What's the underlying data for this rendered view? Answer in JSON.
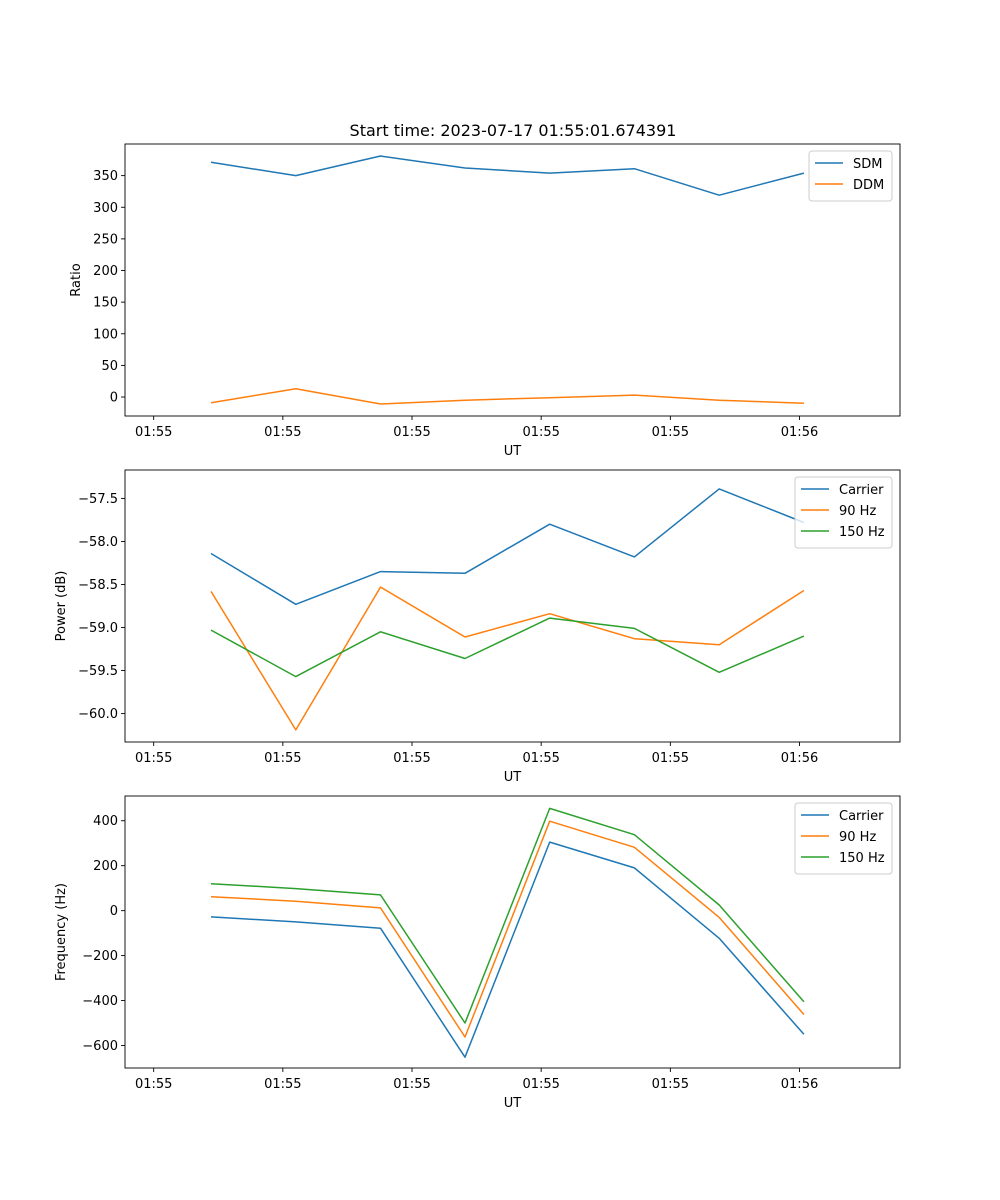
{
  "chart_data": {
    "title": "Start time: 2023-07-17 01:55:01.674391",
    "colors": {
      "c0": "#1f77b4",
      "c1": "#ff7f0e",
      "c2": "#2ca02c"
    },
    "subplots": [
      {
        "type": "line",
        "xlabel": "UT",
        "ylabel": "Ratio",
        "xlim": [
          -0.222,
          5.778
        ],
        "ylim": [
          -30,
          400
        ],
        "xticks": [
          0,
          1,
          2,
          3,
          4,
          5
        ],
        "xtick_labels": [
          "01:55",
          "01:55",
          "01:55",
          "01:55",
          "01:55",
          "01:56"
        ],
        "yticks": [
          0,
          50,
          100,
          150,
          200,
          250,
          300,
          350
        ],
        "ytick_labels": [
          "0",
          "50",
          "100",
          "150",
          "200",
          "250",
          "300",
          "350"
        ],
        "x": [
          0.444,
          1.1,
          1.756,
          2.41,
          3.066,
          3.722,
          4.378,
          5.034
        ],
        "legend_position": "top-right",
        "series": [
          {
            "name": "SDM",
            "color_key": "c0",
            "values": [
              371,
              350,
              381,
              362,
              354,
              361,
              319,
              354
            ]
          },
          {
            "name": "DDM",
            "color_key": "c1",
            "values": [
              -9,
              13,
              -11,
              -5,
              -1,
              3,
              -5,
              -10
            ]
          }
        ]
      },
      {
        "type": "line",
        "xlabel": "UT",
        "ylabel": "Power (dB)",
        "xlim": [
          -0.222,
          5.778
        ],
        "ylim": [
          -60.33,
          -57.17
        ],
        "xticks": [
          0,
          1,
          2,
          3,
          4,
          5
        ],
        "xtick_labels": [
          "01:55",
          "01:55",
          "01:55",
          "01:55",
          "01:55",
          "01:56"
        ],
        "yticks": [
          -60.0,
          -59.5,
          -59.0,
          -58.5,
          -58.0,
          -57.5
        ],
        "ytick_labels": [
          "−60.0",
          "−59.5",
          "−59.0",
          "−58.5",
          "−58.0",
          "−57.5"
        ],
        "x": [
          0.444,
          1.1,
          1.756,
          2.41,
          3.066,
          3.722,
          4.378,
          5.034
        ],
        "legend_position": "top-right",
        "series": [
          {
            "name": "Carrier",
            "color_key": "c0",
            "values": [
              -58.14,
              -58.73,
              -58.35,
              -58.37,
              -57.8,
              -58.18,
              -57.39,
              -57.78
            ]
          },
          {
            "name": "90 Hz",
            "color_key": "c1",
            "values": [
              -58.58,
              -60.19,
              -58.53,
              -59.11,
              -58.84,
              -59.13,
              -59.2,
              -58.57
            ]
          },
          {
            "name": "150 Hz",
            "color_key": "c2",
            "values": [
              -59.03,
              -59.57,
              -59.05,
              -59.36,
              -58.89,
              -59.01,
              -59.52,
              -59.1
            ]
          }
        ]
      },
      {
        "type": "line",
        "xlabel": "UT",
        "ylabel": "Frequency (Hz)",
        "xlim": [
          -0.222,
          5.778
        ],
        "ylim": [
          -700,
          510
        ],
        "xticks": [
          0,
          1,
          2,
          3,
          4,
          5
        ],
        "xtick_labels": [
          "01:55",
          "01:55",
          "01:55",
          "01:55",
          "01:55",
          "01:56"
        ],
        "yticks": [
          -600,
          -400,
          -200,
          0,
          200,
          400
        ],
        "ytick_labels": [
          "−600",
          "−400",
          "−200",
          "0",
          "200",
          "400"
        ],
        "x": [
          0.444,
          1.1,
          1.756,
          2.41,
          3.066,
          3.722,
          4.378,
          5.034
        ],
        "legend_position": "top-right",
        "series": [
          {
            "name": "Carrier",
            "color_key": "c0",
            "values": [
              -28,
              -50,
              -78,
              -652,
              305,
              190,
              -123,
              -550
            ]
          },
          {
            "name": "90 Hz",
            "color_key": "c1",
            "values": [
              62,
              42,
              12,
              -562,
              398,
              282,
              -30,
              -462
            ]
          },
          {
            "name": "150 Hz",
            "color_key": "c2",
            "values": [
              120,
              98,
              70,
              -500,
              455,
              338,
              25,
              -405
            ]
          }
        ]
      }
    ]
  }
}
